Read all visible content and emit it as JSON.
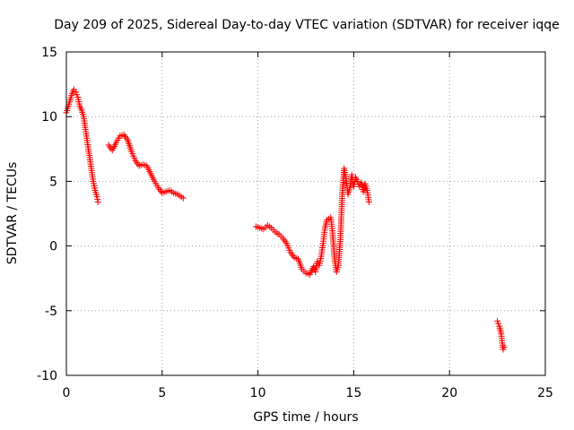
{
  "chart_data": {
    "type": "scatter",
    "title": "Day 209 of 2025, Sidereal Day-to-day VTEC variation (SDTVAR) for receiver iqqe",
    "xlabel": "GPS time / hours",
    "ylabel": "SDTVAR / TECUs",
    "xlim": [
      0,
      25
    ],
    "ylim": [
      -10,
      15
    ],
    "xticks": [
      0,
      5,
      10,
      15,
      20,
      25
    ],
    "yticks": [
      -10,
      -5,
      0,
      5,
      10,
      15
    ],
    "xtick_labels": [
      "0",
      "5",
      "10",
      "15",
      "20",
      "25"
    ],
    "ytick_labels": [
      "-10",
      "-5",
      "0",
      "5",
      "10",
      "15"
    ],
    "grid": true,
    "marker": "plus",
    "color": "#ff0000",
    "segments": [
      {
        "name": "segment-1",
        "x": [
          0.0,
          0.1,
          0.2,
          0.3,
          0.4,
          0.5,
          0.6,
          0.7,
          0.8,
          0.9,
          1.0,
          1.1,
          1.2,
          1.3,
          1.4,
          1.5,
          1.6,
          1.65
        ],
        "y": [
          10.3,
          10.8,
          11.3,
          11.8,
          12.1,
          11.9,
          11.5,
          10.8,
          10.5,
          10.0,
          9.0,
          8.0,
          7.0,
          6.0,
          5.0,
          4.3,
          3.8,
          3.4
        ]
      },
      {
        "name": "segment-2",
        "x": [
          2.2,
          2.4,
          2.6,
          2.8,
          3.0,
          3.2,
          3.4,
          3.6,
          3.8,
          4.0,
          4.2,
          4.4,
          4.6,
          4.8,
          5.0,
          5.2,
          5.4,
          5.6,
          5.8,
          6.0,
          6.1
        ],
        "y": [
          7.8,
          7.4,
          8.0,
          8.5,
          8.6,
          8.2,
          7.3,
          6.6,
          6.2,
          6.3,
          6.2,
          5.6,
          5.0,
          4.5,
          4.1,
          4.2,
          4.3,
          4.1,
          4.0,
          3.8,
          3.7
        ]
      },
      {
        "name": "segment-3",
        "x": [
          9.9,
          10.1,
          10.3,
          10.5,
          10.7,
          10.9,
          11.1,
          11.3,
          11.5,
          11.7,
          11.9,
          12.1,
          12.3,
          12.5,
          12.7,
          12.9,
          13.0,
          13.1,
          13.2,
          13.3,
          13.4,
          13.5,
          13.6,
          13.7,
          13.8,
          13.9,
          14.0,
          14.1,
          14.2,
          14.3,
          14.4,
          14.5,
          14.6,
          14.7,
          14.8,
          14.9,
          15.0,
          15.1,
          15.2,
          15.3,
          15.4,
          15.5,
          15.6,
          15.7,
          15.8
        ],
        "y": [
          1.5,
          1.4,
          1.3,
          1.6,
          1.4,
          1.1,
          0.9,
          0.6,
          0.2,
          -0.5,
          -0.9,
          -1.0,
          -1.8,
          -2.1,
          -2.2,
          -1.6,
          -2.0,
          -1.2,
          -1.5,
          -0.8,
          0.2,
          1.4,
          2.0,
          2.1,
          2.2,
          1.0,
          -1.0,
          -2.0,
          -1.5,
          0.5,
          4.0,
          6.0,
          5.2,
          4.0,
          4.5,
          5.5,
          4.6,
          5.3,
          5.0,
          4.6,
          4.9,
          4.2,
          4.8,
          4.3,
          3.4
        ]
      },
      {
        "name": "segment-4",
        "x": [
          22.5,
          22.6,
          22.7,
          22.75,
          22.8,
          22.85
        ],
        "y": [
          -5.8,
          -6.2,
          -6.8,
          -7.5,
          -8.0,
          -7.8
        ]
      }
    ]
  }
}
